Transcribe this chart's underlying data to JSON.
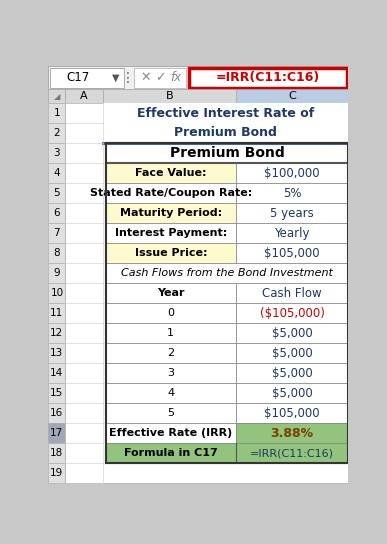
{
  "title_line1": "Effective Interest Rate of",
  "title_line2": "Premium Bond",
  "title_color": "#1F3864",
  "formula_bar_text": "=IRR(C11:C16)",
  "cell_ref": "C17",
  "table_title": "Premium Bond",
  "bg_color": "#C8C8C8",
  "sheet_bg": "#FFFFFF",
  "border_color": "#2F4F8F",
  "formula_red": "#CC0000",
  "gutter_bg": "#E0E0E0",
  "gutter_hl": "#A0A8B8",
  "col_header_bg": "#D0D0D0",
  "col_c_header_bg": "#B8CCE4",
  "yellow_bg": "#FFFACD",
  "green_bg": "#92C47D",
  "green_light_bg": "#92C47D",
  "irr_value_bg": "#92C47D",
  "irr_value_color": "#7B3F00",
  "red_text": "#CC0000",
  "navy_text": "#1F3864",
  "rows": [
    {
      "label": "Face Value:",
      "value": "$100,000",
      "label_bg": "#FFFACD",
      "value_color": "#1F3864",
      "bold": true
    },
    {
      "label": "Stated Rate/Coupon Rate:",
      "value": "5%",
      "label_bg": "#FFFFFF",
      "value_color": "#1F3864",
      "bold": true
    },
    {
      "label": "Maturity Period:",
      "value": "5 years",
      "label_bg": "#FFFACD",
      "value_color": "#1F3864",
      "bold": true
    },
    {
      "label": "Interest Payment:",
      "value": "Yearly",
      "label_bg": "#FFFFFF",
      "value_color": "#1F3864",
      "bold": true
    },
    {
      "label": "Issue Price:",
      "value": "$105,000",
      "label_bg": "#FFFACD",
      "value_color": "#1F3864",
      "bold": true
    },
    {
      "label": "Cash Flows from the Bond Investment",
      "value": "",
      "label_bg": "#FFFFFF",
      "value_color": "#1F3864",
      "bold": false,
      "italic": true,
      "span": true
    },
    {
      "label": "Year",
      "value": "Cash Flow",
      "label_bg": "#FFFFFF",
      "value_color": "#1F3864",
      "bold": true
    },
    {
      "label": "0",
      "value": "($105,000)",
      "label_bg": "#FFFFFF",
      "value_color": "#CC0000",
      "bold": false
    },
    {
      "label": "1",
      "value": "$5,000",
      "label_bg": "#FFFFFF",
      "value_color": "#1F3864",
      "bold": false
    },
    {
      "label": "2",
      "value": "$5,000",
      "label_bg": "#FFFFFF",
      "value_color": "#1F3864",
      "bold": false
    },
    {
      "label": "3",
      "value": "$5,000",
      "label_bg": "#FFFFFF",
      "value_color": "#1F3864",
      "bold": false
    },
    {
      "label": "4",
      "value": "$5,000",
      "label_bg": "#FFFFFF",
      "value_color": "#1F3864",
      "bold": false
    },
    {
      "label": "5",
      "value": "$105,000",
      "label_bg": "#FFFFFF",
      "value_color": "#1F3864",
      "bold": false
    },
    {
      "label": "Effective Rate (IRR)",
      "value": "3.88%",
      "label_bg": "#FFFFFF",
      "value_color": "#7B3F00",
      "bold": true,
      "irr": true
    },
    {
      "label": "Formula in C17",
      "value": "=IRR(C11:C16)",
      "label_bg": "#92C47D",
      "value_color": "#1F3864",
      "bold": true,
      "formula_row": true
    }
  ],
  "row_numbers": [
    "1",
    "2",
    "3",
    "4",
    "5",
    "6",
    "7",
    "8",
    "9",
    "10",
    "11",
    "12",
    "13",
    "14",
    "15",
    "16",
    "17",
    "18",
    "19"
  ]
}
